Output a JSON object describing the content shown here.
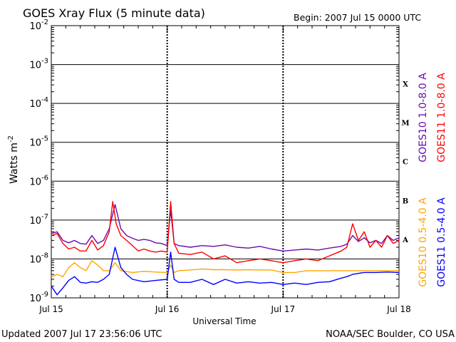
{
  "chart_data": {
    "type": "line",
    "title": "GOES Xray Flux (5 minute data)",
    "begin_label": "Begin:  2007 Jul 15 0000 UTC",
    "xlabel": "Universal Time",
    "ylabel_base": "Watts m",
    "ylabel_exp": "-2",
    "x_ticks": [
      "Jul 15",
      "Jul 16",
      "Jul 17",
      "Jul 18"
    ],
    "xlim_days": [
      0,
      3
    ],
    "y_scale": "log",
    "ylim": [
      1e-09,
      0.01
    ],
    "y_ticks": [
      {
        "base": "10",
        "exp": "-9",
        "value": 1e-09
      },
      {
        "base": "10",
        "exp": "-8",
        "value": 1e-08
      },
      {
        "base": "10",
        "exp": "-7",
        "value": 1e-07
      },
      {
        "base": "10",
        "exp": "-6",
        "value": 1e-06
      },
      {
        "base": "10",
        "exp": "-5",
        "value": 1e-05
      },
      {
        "base": "10",
        "exp": "-4",
        "value": 0.0001
      },
      {
        "base": "10",
        "exp": "-3",
        "value": 0.001
      },
      {
        "base": "10",
        "exp": "-2",
        "value": 0.01
      }
    ],
    "flare_classes": [
      {
        "label": "A",
        "value": 3.2e-08
      },
      {
        "label": "B",
        "value": 3.2e-07
      },
      {
        "label": "C",
        "value": 3.2e-06
      },
      {
        "label": "M",
        "value": 3.2e-05
      },
      {
        "label": "X",
        "value": 0.00032
      }
    ],
    "series": [
      {
        "name": "GOES10 1.0-8.0 A",
        "color": "#6a0dad",
        "points": [
          [
            0,
            4.5e-08
          ],
          [
            0.05,
            5e-08
          ],
          [
            0.1,
            3e-08
          ],
          [
            0.15,
            2.6e-08
          ],
          [
            0.2,
            3e-08
          ],
          [
            0.25,
            2.5e-08
          ],
          [
            0.3,
            2.4e-08
          ],
          [
            0.35,
            4e-08
          ],
          [
            0.4,
            2.5e-08
          ],
          [
            0.45,
            3e-08
          ],
          [
            0.5,
            6e-08
          ],
          [
            0.55,
            2.5e-07
          ],
          [
            0.6,
            6e-08
          ],
          [
            0.65,
            4e-08
          ],
          [
            0.7,
            3.4e-08
          ],
          [
            0.75,
            3e-08
          ],
          [
            0.8,
            3.2e-08
          ],
          [
            0.85,
            3e-08
          ],
          [
            0.9,
            2.6e-08
          ],
          [
            0.95,
            2.5e-08
          ],
          [
            1.0,
            2.2e-08
          ],
          [
            1.03,
            1.8e-07
          ],
          [
            1.06,
            2.5e-08
          ],
          [
            1.1,
            2.2e-08
          ],
          [
            1.2,
            2e-08
          ],
          [
            1.3,
            2.2e-08
          ],
          [
            1.4,
            2.1e-08
          ],
          [
            1.5,
            2.3e-08
          ],
          [
            1.6,
            2e-08
          ],
          [
            1.7,
            1.9e-08
          ],
          [
            1.8,
            2.1e-08
          ],
          [
            1.9,
            1.8e-08
          ],
          [
            2.0,
            1.6e-08
          ],
          [
            2.1,
            1.7e-08
          ],
          [
            2.2,
            1.8e-08
          ],
          [
            2.3,
            1.7e-08
          ],
          [
            2.4,
            1.9e-08
          ],
          [
            2.5,
            2.1e-08
          ],
          [
            2.55,
            2.4e-08
          ],
          [
            2.6,
            4e-08
          ],
          [
            2.65,
            2.8e-08
          ],
          [
            2.7,
            3.5e-08
          ],
          [
            2.75,
            2.6e-08
          ],
          [
            2.8,
            3e-08
          ],
          [
            2.85,
            2.5e-08
          ],
          [
            2.9,
            4e-08
          ],
          [
            2.95,
            3e-08
          ],
          [
            3.0,
            3.5e-08
          ]
        ]
      },
      {
        "name": "GOES11 1.0-8.0 A",
        "color": "#ff0000",
        "points": [
          [
            0,
            4e-08
          ],
          [
            0.05,
            4.5e-08
          ],
          [
            0.1,
            2.5e-08
          ],
          [
            0.15,
            1.8e-08
          ],
          [
            0.2,
            2e-08
          ],
          [
            0.25,
            1.6e-08
          ],
          [
            0.3,
            1.6e-08
          ],
          [
            0.35,
            3e-08
          ],
          [
            0.4,
            1.7e-08
          ],
          [
            0.45,
            2.2e-08
          ],
          [
            0.5,
            5e-08
          ],
          [
            0.53,
            3e-07
          ],
          [
            0.56,
            8e-08
          ],
          [
            0.6,
            4e-08
          ],
          [
            0.65,
            3e-08
          ],
          [
            0.7,
            2.2e-08
          ],
          [
            0.75,
            1.6e-08
          ],
          [
            0.8,
            1.8e-08
          ],
          [
            0.85,
            1.6e-08
          ],
          [
            0.9,
            1.5e-08
          ],
          [
            0.95,
            1.6e-08
          ],
          [
            1.0,
            1.5e-08
          ],
          [
            1.03,
            3e-07
          ],
          [
            1.06,
            2.5e-08
          ],
          [
            1.1,
            1.4e-08
          ],
          [
            1.2,
            1.3e-08
          ],
          [
            1.3,
            1.5e-08
          ],
          [
            1.4,
            1e-08
          ],
          [
            1.5,
            1.2e-08
          ],
          [
            1.6,
            8e-09
          ],
          [
            1.7,
            9e-09
          ],
          [
            1.8,
            1e-08
          ],
          [
            1.9,
            9e-09
          ],
          [
            2.0,
            8e-09
          ],
          [
            2.1,
            9e-09
          ],
          [
            2.2,
            1e-08
          ],
          [
            2.3,
            9e-09
          ],
          [
            2.4,
            1.2e-08
          ],
          [
            2.5,
            1.6e-08
          ],
          [
            2.55,
            2e-08
          ],
          [
            2.6,
            8e-08
          ],
          [
            2.65,
            3e-08
          ],
          [
            2.7,
            5e-08
          ],
          [
            2.75,
            2e-08
          ],
          [
            2.8,
            3e-08
          ],
          [
            2.85,
            2e-08
          ],
          [
            2.9,
            4e-08
          ],
          [
            2.95,
            2.5e-08
          ],
          [
            3.0,
            3e-08
          ]
        ]
      },
      {
        "name": "GOES10 0.5-4.0 A",
        "color": "#ffa500",
        "points": [
          [
            0,
            3.5e-09
          ],
          [
            0.05,
            4e-09
          ],
          [
            0.1,
            3.5e-09
          ],
          [
            0.15,
            6e-09
          ],
          [
            0.2,
            8e-09
          ],
          [
            0.25,
            6e-09
          ],
          [
            0.3,
            5e-09
          ],
          [
            0.35,
            9e-09
          ],
          [
            0.4,
            7e-09
          ],
          [
            0.45,
            5e-09
          ],
          [
            0.5,
            5e-09
          ],
          [
            0.55,
            8e-09
          ],
          [
            0.6,
            5e-09
          ],
          [
            0.7,
            4.5e-09
          ],
          [
            0.8,
            4.8e-09
          ],
          [
            0.9,
            4.6e-09
          ],
          [
            1.0,
            4.5e-09
          ],
          [
            1.03,
            7e-09
          ],
          [
            1.06,
            4.5e-09
          ],
          [
            1.1,
            5e-09
          ],
          [
            1.2,
            5.2e-09
          ],
          [
            1.3,
            5.5e-09
          ],
          [
            1.4,
            5.3e-09
          ],
          [
            1.5,
            5.3e-09
          ],
          [
            1.6,
            5.2e-09
          ],
          [
            1.7,
            5.3e-09
          ],
          [
            1.8,
            5.2e-09
          ],
          [
            1.9,
            5.2e-09
          ],
          [
            2.0,
            4.5e-09
          ],
          [
            2.1,
            4.5e-09
          ],
          [
            2.2,
            5e-09
          ],
          [
            2.3,
            5e-09
          ],
          [
            2.4,
            5e-09
          ],
          [
            2.5,
            5e-09
          ],
          [
            2.6,
            5e-09
          ],
          [
            2.7,
            5e-09
          ],
          [
            2.8,
            5e-09
          ],
          [
            2.9,
            5e-09
          ],
          [
            3.0,
            5e-09
          ]
        ]
      },
      {
        "name": "GOES11 0.5-4.0 A",
        "color": "#0000ff",
        "points": [
          [
            0,
            2e-09
          ],
          [
            0.05,
            1.2e-09
          ],
          [
            0.1,
            1.8e-09
          ],
          [
            0.15,
            2.8e-09
          ],
          [
            0.2,
            3.5e-09
          ],
          [
            0.25,
            2.5e-09
          ],
          [
            0.3,
            2.4e-09
          ],
          [
            0.35,
            2.6e-09
          ],
          [
            0.4,
            2.5e-09
          ],
          [
            0.45,
            3e-09
          ],
          [
            0.5,
            4e-09
          ],
          [
            0.55,
            2e-08
          ],
          [
            0.6,
            6e-09
          ],
          [
            0.65,
            4e-09
          ],
          [
            0.7,
            3e-09
          ],
          [
            0.8,
            2.6e-09
          ],
          [
            0.9,
            2.8e-09
          ],
          [
            1.0,
            3e-09
          ],
          [
            1.03,
            1.5e-08
          ],
          [
            1.06,
            3e-09
          ],
          [
            1.1,
            2.5e-09
          ],
          [
            1.2,
            2.5e-09
          ],
          [
            1.3,
            3e-09
          ],
          [
            1.4,
            2.2e-09
          ],
          [
            1.5,
            3e-09
          ],
          [
            1.6,
            2.4e-09
          ],
          [
            1.7,
            2.6e-09
          ],
          [
            1.8,
            2.4e-09
          ],
          [
            1.9,
            2.5e-09
          ],
          [
            2.0,
            2.2e-09
          ],
          [
            2.1,
            2.4e-09
          ],
          [
            2.2,
            2.2e-09
          ],
          [
            2.3,
            2.5e-09
          ],
          [
            2.4,
            2.6e-09
          ],
          [
            2.5,
            3.2e-09
          ],
          [
            2.55,
            3.5e-09
          ],
          [
            2.6,
            4e-09
          ],
          [
            2.7,
            4.5e-09
          ],
          [
            2.8,
            4.5e-09
          ],
          [
            2.9,
            4.6e-09
          ],
          [
            3.0,
            4.5e-09
          ]
        ]
      }
    ],
    "footer_left": "Updated 2007 Jul 17 23:56:06 UTC",
    "footer_right": "NOAA/SEC Boulder, CO USA"
  }
}
